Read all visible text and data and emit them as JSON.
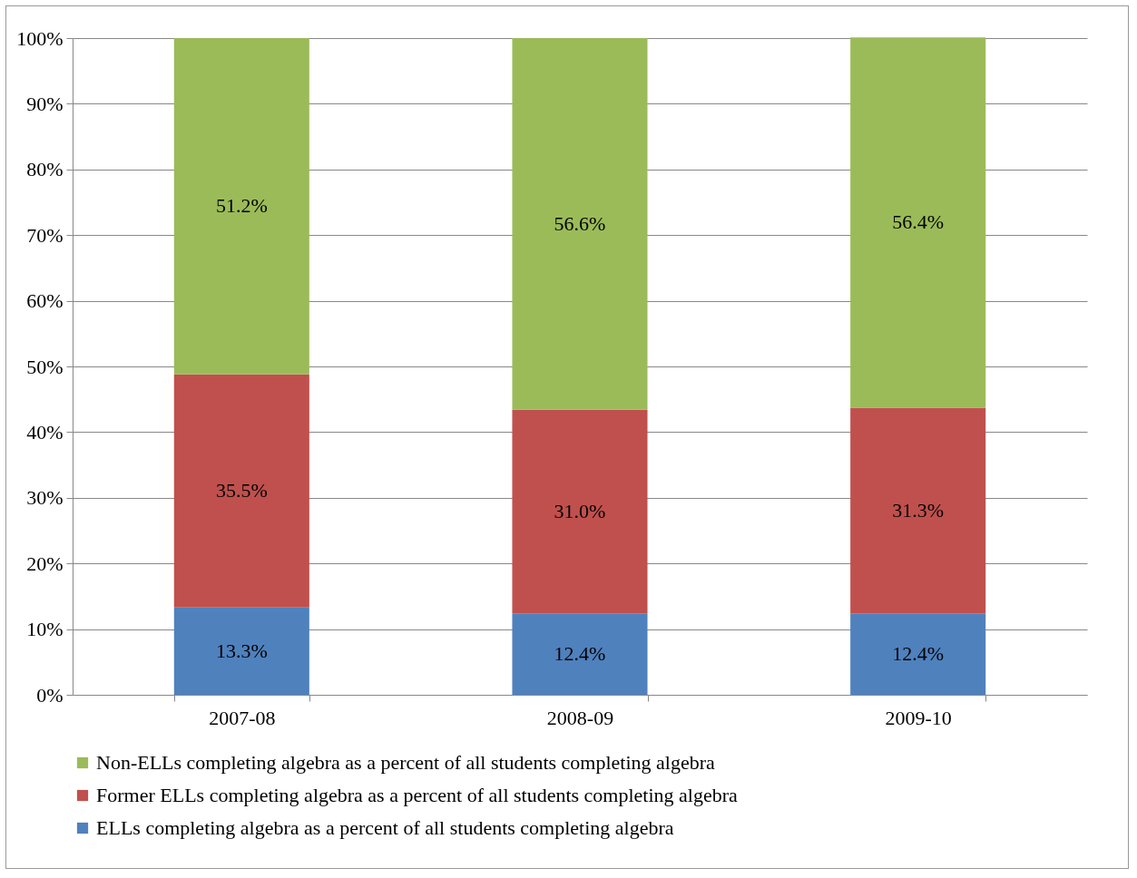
{
  "chart_data": {
    "type": "bar",
    "stacked": true,
    "categories": [
      "2007-08",
      "2008-09",
      "2009-10"
    ],
    "series": [
      {
        "name": "ELLs completing algebra as a percent of all students completing algebra",
        "color": "#4f81bd",
        "values": [
          13.3,
          12.4,
          12.4
        ],
        "value_labels": [
          "13.3%",
          "12.4%",
          "12.4%"
        ]
      },
      {
        "name": "Former ELLs completing algebra as a percent of all students completing algebra",
        "color": "#c0504d",
        "values": [
          35.5,
          31.0,
          31.3
        ],
        "value_labels": [
          "35.5%",
          "31.0%",
          "31.3%"
        ]
      },
      {
        "name": "Non-ELLs completing algebra as a percent of all students completing algebra",
        "color": "#9bbb59",
        "values": [
          51.2,
          56.6,
          56.4
        ],
        "value_labels": [
          "51.2%",
          "56.6%",
          "56.4%"
        ]
      }
    ],
    "ylim": [
      0,
      100
    ],
    "yticks": [
      {
        "value": 0,
        "label": "0%"
      },
      {
        "value": 10,
        "label": "10%"
      },
      {
        "value": 20,
        "label": "20%"
      },
      {
        "value": 30,
        "label": "30%"
      },
      {
        "value": 40,
        "label": "40%"
      },
      {
        "value": 50,
        "label": "50%"
      },
      {
        "value": 60,
        "label": "60%"
      },
      {
        "value": 70,
        "label": "70%"
      },
      {
        "value": 80,
        "label": "80%"
      },
      {
        "value": 90,
        "label": "90%"
      },
      {
        "value": 100,
        "label": "100%"
      }
    ],
    "grid": "y",
    "legend": "bottom"
  }
}
